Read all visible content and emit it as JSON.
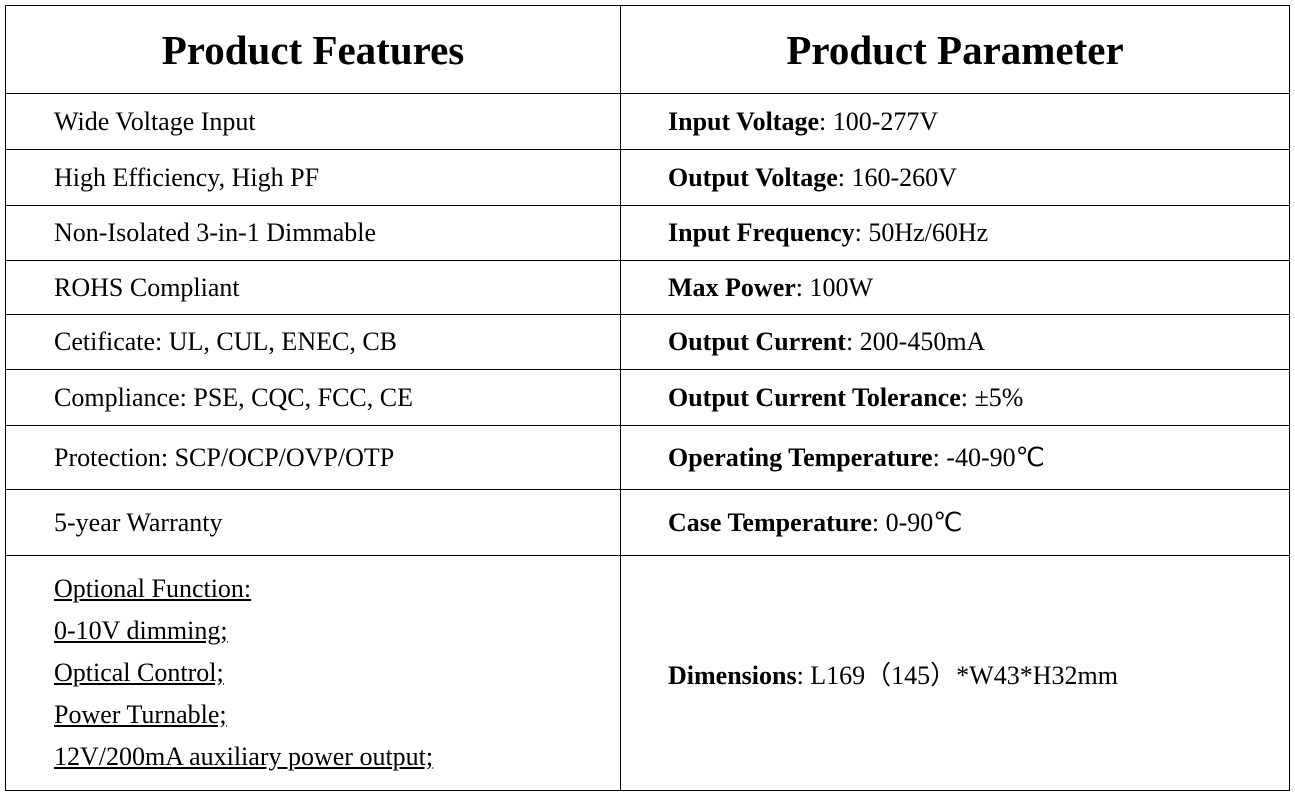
{
  "headers": {
    "features": "Product Features",
    "parameters": "Product Parameter"
  },
  "features": [
    "Wide Voltage Input",
    "High Efficiency, High PF",
    "Non-Isolated 3-in-1 Dimmable",
    "ROHS Compliant",
    "Cetificate: UL, CUL, ENEC, CB",
    "Compliance: PSE, CQC, FCC, CE",
    "Protection: SCP/OCP/OVP/OTP",
    "5-year Warranty"
  ],
  "optional": [
    "Optional Function:",
    "0-10V dimming;",
    "Optical Control;",
    "Power Turnable;",
    "12V/200mA auxiliary power output;"
  ],
  "parameters": [
    {
      "label": "Input Voltage",
      "value": ": 100-277V"
    },
    {
      "label": "Output Voltage",
      "value": ": 160-260V"
    },
    {
      "label": "Input Frequency",
      "value": ": 50Hz/60Hz"
    },
    {
      "label": "Max Power",
      "value": ": 100W"
    },
    {
      "label": "Output Current",
      "value": ": 200-450mA"
    },
    {
      "label": "Output Current Tolerance",
      "value": ": ±5%"
    },
    {
      "label": "Operating Temperature",
      "value": ": -40-90℃"
    },
    {
      "label": "Case Temperature",
      "value": ": 0-90℃"
    },
    {
      "label": "Dimensions",
      "value": ": L169（145）*W43*H32mm"
    }
  ]
}
